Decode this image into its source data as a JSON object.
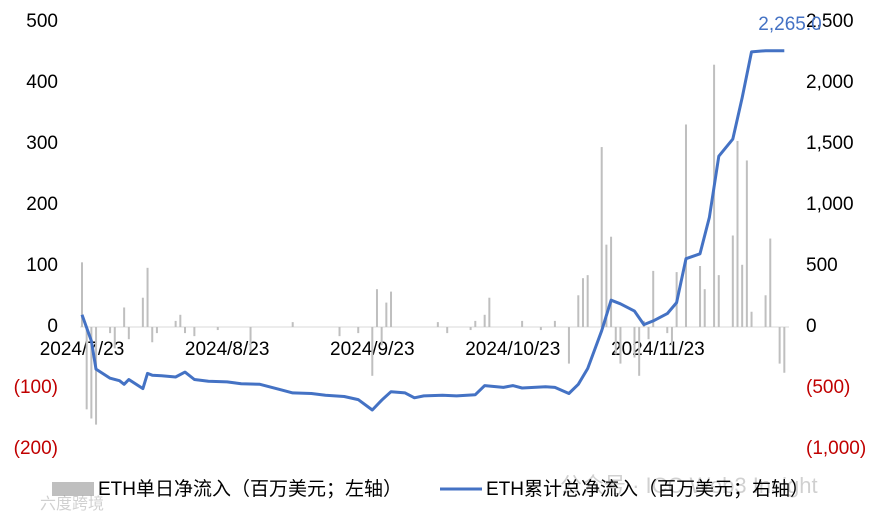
{
  "chart_data": {
    "type": "bar-line",
    "xlim": [
      "2024/7/23",
      "2024/12/21"
    ],
    "xticks": [
      "2024/7/23",
      "2024/8/23",
      "2024/9/23",
      "2024/10/23",
      "2024/11/23"
    ],
    "ylim": [
      -200,
      500
    ],
    "yticks": [
      500,
      400,
      300,
      200,
      100,
      0,
      {
        "value": -100,
        "label": "(100)"
      },
      {
        "value": -200,
        "label": "(200)"
      }
    ],
    "y2lim": [
      -1000,
      2500
    ],
    "y2ticks": [
      {
        "value": 2500,
        "label": "2,500"
      },
      {
        "value": 2000,
        "label": "2,000"
      },
      {
        "value": 1500,
        "label": "1,500"
      },
      {
        "value": 1000,
        "label": "1,000"
      },
      500,
      0,
      {
        "value": -500,
        "label": "(500)"
      },
      {
        "value": -1000,
        "label": "(1,000)"
      }
    ],
    "series": [
      {
        "name": "ETH单日净流入（百万美元；左轴）",
        "type": "bar",
        "axis": "y",
        "color": "#bfbfbf",
        "x": [
          "2024/7/23",
          "2024/7/24",
          "2024/7/25",
          "2024/7/26",
          "2024/7/29",
          "2024/7/30",
          "2024/8/1",
          "2024/8/2",
          "2024/8/5",
          "2024/8/6",
          "2024/8/7",
          "2024/8/8",
          "2024/8/12",
          "2024/8/13",
          "2024/8/14",
          "2024/8/16",
          "2024/8/21",
          "2024/8/28",
          "2024/9/6",
          "2024/9/16",
          "2024/9/20",
          "2024/9/23",
          "2024/9/24",
          "2024/9/25",
          "2024/9/26",
          "2024/9/27",
          "2024/10/7",
          "2024/10/9",
          "2024/10/14",
          "2024/10/15",
          "2024/10/17",
          "2024/10/18",
          "2024/10/25",
          "2024/10/29",
          "2024/11/1",
          "2024/11/4",
          "2024/11/6",
          "2024/11/7",
          "2024/11/8",
          "2024/11/11",
          "2024/11/12",
          "2024/11/13",
          "2024/11/14",
          "2024/11/15",
          "2024/11/18",
          "2024/11/19",
          "2024/11/20",
          "2024/11/21",
          "2024/11/22",
          "2024/11/25",
          "2024/11/26",
          "2024/11/27",
          "2024/11/29",
          "2024/12/2",
          "2024/12/3",
          "2024/12/5",
          "2024/12/6",
          "2024/12/9",
          "2024/12/10",
          "2024/12/11",
          "2024/12/12",
          "2024/12/13",
          "2024/12/16",
          "2024/12/17",
          "2024/12/19",
          "2024/12/20"
        ],
        "values": [
          106,
          -135,
          -150,
          -160,
          -10,
          -35,
          32,
          -20,
          48,
          97,
          -25,
          -10,
          10,
          20,
          -10,
          -15,
          -5,
          -40,
          8,
          -15,
          -10,
          -80,
          62,
          -30,
          40,
          58,
          8,
          -10,
          -5,
          10,
          20,
          48,
          10,
          -5,
          10,
          -60,
          52,
          80,
          85,
          295,
          135,
          148,
          -45,
          -60,
          -50,
          -80,
          10,
          -20,
          92,
          -10,
          -30,
          90,
          332,
          100,
          62,
          430,
          85,
          150,
          305,
          102,
          273,
          25,
          52,
          145,
          -60,
          -75
        ]
      },
      {
        "name": "ETH累计总净流入（百万美元；右轴）",
        "type": "line",
        "axis": "y2",
        "color": "#4472c4",
        "x": [
          "2024/7/23",
          "2024/7/25",
          "2024/7/26",
          "2024/7/29",
          "2024/7/31",
          "2024/8/1",
          "2024/8/2",
          "2024/8/5",
          "2024/8/6",
          "2024/8/7",
          "2024/8/9",
          "2024/8/12",
          "2024/8/14",
          "2024/8/16",
          "2024/8/19",
          "2024/8/23",
          "2024/8/26",
          "2024/8/30",
          "2024/9/3",
          "2024/9/6",
          "2024/9/10",
          "2024/9/13",
          "2024/9/17",
          "2024/9/20",
          "2024/9/23",
          "2024/9/25",
          "2024/9/27",
          "2024/9/30",
          "2024/10/2",
          "2024/10/4",
          "2024/10/8",
          "2024/10/11",
          "2024/10/15",
          "2024/10/17",
          "2024/10/21",
          "2024/10/23",
          "2024/10/25",
          "2024/10/30",
          "2024/11/1",
          "2024/11/4",
          "2024/11/6",
          "2024/11/8",
          "2024/11/11",
          "2024/11/13",
          "2024/11/15",
          "2024/11/18",
          "2024/11/20",
          "2024/11/22",
          "2024/11/25",
          "2024/11/27",
          "2024/11/29",
          "2024/12/2",
          "2024/12/4",
          "2024/12/6",
          "2024/12/9",
          "2024/12/11",
          "2024/12/13",
          "2024/12/16",
          "2024/12/18",
          "2024/12/20"
        ],
        "values": [
          100,
          -115,
          -345,
          -420,
          -440,
          -470,
          -430,
          -505,
          -380,
          -395,
          -400,
          -410,
          -370,
          -430,
          -445,
          -450,
          -465,
          -470,
          -510,
          -540,
          -545,
          -560,
          -570,
          -595,
          -680,
          -600,
          -530,
          -540,
          -580,
          -565,
          -560,
          -565,
          -555,
          -480,
          -495,
          -480,
          -500,
          -490,
          -495,
          -545,
          -470,
          -340,
          -30,
          220,
          190,
          130,
          20,
          50,
          110,
          200,
          560,
          600,
          900,
          1400,
          1540,
          1880,
          2255,
          2265,
          2265,
          2265
        ]
      }
    ],
    "annotations": [
      {
        "text": "2,265.0",
        "series": 1
      }
    ],
    "watermarks": [
      "公众号 · ICC Web3 Insight",
      "六度跨境"
    ]
  }
}
